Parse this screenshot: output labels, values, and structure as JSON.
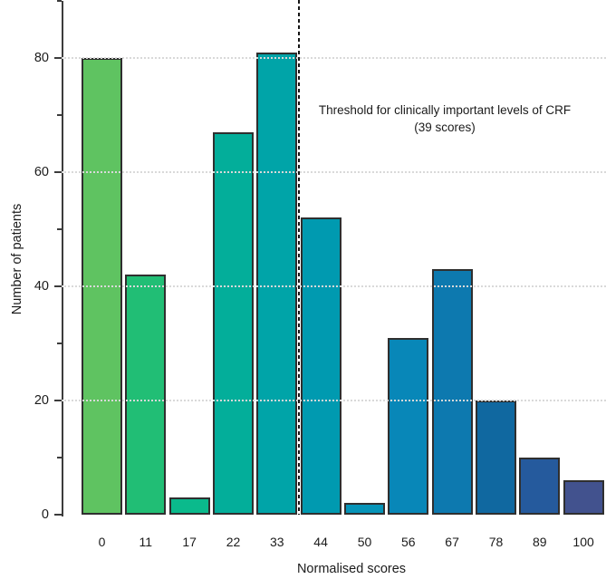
{
  "figure": {
    "background": "#ffffff"
  },
  "chart_data": {
    "type": "bar",
    "title": "",
    "xlabel": "Normalised scores",
    "ylabel": "Number of patients",
    "categories": [
      "0",
      "11",
      "17",
      "22",
      "33",
      "44",
      "50",
      "56",
      "67",
      "78",
      "89",
      "100"
    ],
    "values": [
      80,
      42,
      3,
      67,
      81,
      52,
      2,
      31,
      43,
      20,
      10,
      6
    ],
    "bar_colors": [
      "#5fc361",
      "#21be75",
      "#0aba8c",
      "#03ae9a",
      "#00a4a8",
      "#009ab0",
      "#0694b8",
      "#0887b8",
      "#0d79af",
      "#1068a0",
      "#255a9d",
      "#42528e"
    ],
    "bar_border_color": "#2f2f2f",
    "ylim": [
      0,
      90
    ],
    "y_major_ticks": [
      0,
      20,
      40,
      60,
      80
    ],
    "y_minor_ticks": [
      10,
      30,
      50,
      70,
      90
    ],
    "gridline_values": [
      20,
      40,
      60,
      80
    ],
    "grid": "horizontal dotted, drawn over bars",
    "legend": "none",
    "threshold": {
      "between_categories": [
        "33",
        "44"
      ],
      "line_style": "vertical black dashed",
      "annotation_line1": "Threshold for clinically important levels of CRF",
      "annotation_line2": "(39 scores)"
    }
  }
}
